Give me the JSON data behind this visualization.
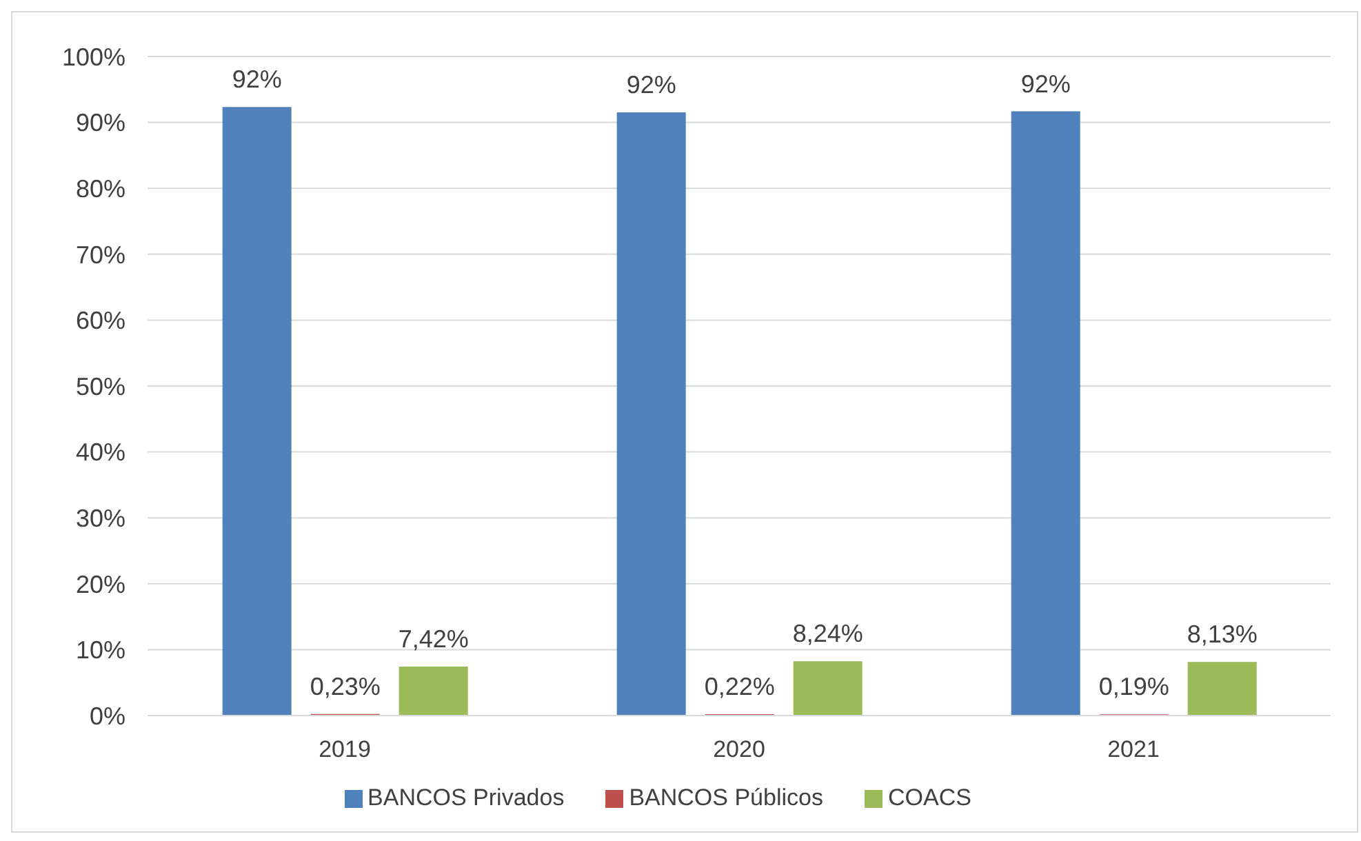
{
  "chart_data": {
    "type": "bar",
    "categories": [
      "2019",
      "2020",
      "2021"
    ],
    "series": [
      {
        "name": "BANCOS Privados",
        "color": "#4f81bd",
        "values": [
          92.35,
          91.54,
          91.68
        ],
        "value_labels": [
          "92%",
          "92%",
          "92%"
        ]
      },
      {
        "name": "BANCOS Públicos",
        "color": "#c0504d",
        "values": [
          0.23,
          0.22,
          0.19
        ],
        "value_labels": [
          "0,23%",
          "0,22%",
          "0,19%"
        ]
      },
      {
        "name": "COACS",
        "color": "#9bbb59",
        "values": [
          7.42,
          8.24,
          8.13
        ],
        "value_labels": [
          "7,42%",
          "8,24%",
          "8,13%"
        ]
      }
    ],
    "ylim": [
      0,
      100
    ],
    "yticks": [
      {
        "value": 0,
        "label": "0%"
      },
      {
        "value": 10,
        "label": "10%"
      },
      {
        "value": 20,
        "label": "20%"
      },
      {
        "value": 30,
        "label": "30%"
      },
      {
        "value": 40,
        "label": "40%"
      },
      {
        "value": 50,
        "label": "50%"
      },
      {
        "value": 60,
        "label": "60%"
      },
      {
        "value": 70,
        "label": "70%"
      },
      {
        "value": 80,
        "label": "80%"
      },
      {
        "value": 90,
        "label": "90%"
      },
      {
        "value": 100,
        "label": "100%"
      }
    ],
    "grid": "y",
    "legend": "bottom"
  }
}
